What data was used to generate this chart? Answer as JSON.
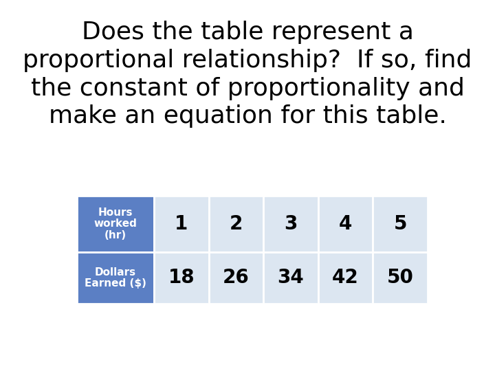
{
  "title": "Does the table represent a\nproportional relationship?  If so, find\nthe constant of proportionality and\nmake an equation for this table.",
  "title_fontsize": 26,
  "title_color": "#000000",
  "background_color": "#ffffff",
  "header_bg_color": "#5b7fc4",
  "header_text_color": "#ffffff",
  "cell_bg_color": "#dce6f1",
  "cell_text_color": "#000000",
  "row_labels": [
    "Hours\nworked\n(hr)",
    "Dollars\nEarned ($)"
  ],
  "col_values": [
    [
      "1",
      "2",
      "3",
      "4",
      "5"
    ],
    [
      "18",
      "26",
      "34",
      "42",
      "50"
    ]
  ],
  "cell_fontsize": 20,
  "header_fontsize": 11
}
